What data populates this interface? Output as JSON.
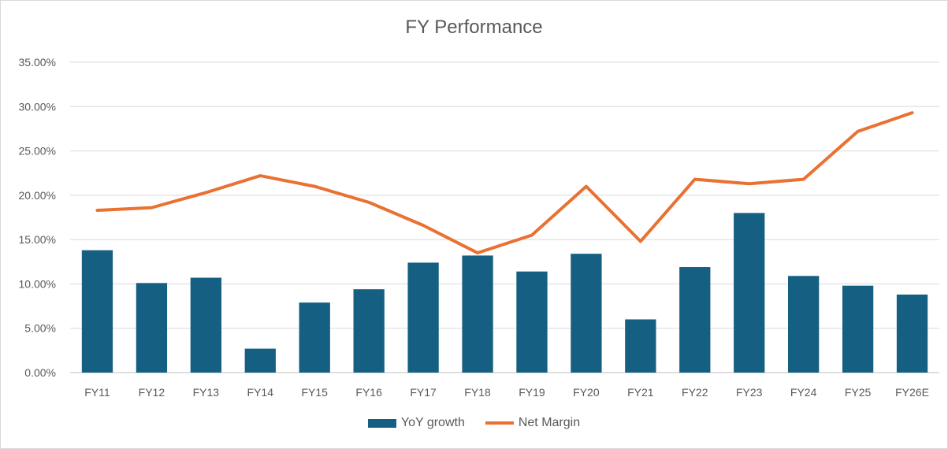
{
  "chart_data": {
    "type": "bar",
    "title": "FY Performance",
    "xlabel": "",
    "ylabel": "",
    "ylim": [
      0,
      35
    ],
    "y_ticks": [
      "0.00%",
      "5.00%",
      "10.00%",
      "15.00%",
      "20.00%",
      "25.00%",
      "30.00%",
      "35.00%"
    ],
    "y_step": 5,
    "categories": [
      "FY11",
      "FY12",
      "FY13",
      "FY14",
      "FY15",
      "FY16",
      "FY17",
      "FY18",
      "FY19",
      "FY20",
      "FY21",
      "FY22",
      "FY23",
      "FY24",
      "FY25",
      "FY26E"
    ],
    "grid": true,
    "legend_position": "bottom",
    "series": [
      {
        "name": "YoY growth",
        "type": "bar",
        "color": "#156082",
        "values": [
          13.8,
          10.1,
          10.7,
          2.7,
          7.9,
          9.4,
          12.4,
          13.2,
          11.4,
          13.4,
          6.0,
          11.9,
          18.0,
          10.9,
          9.8,
          8.8
        ]
      },
      {
        "name": "Net Margin",
        "type": "line",
        "color": "#E97132",
        "values": [
          18.3,
          18.6,
          20.3,
          22.2,
          21.0,
          19.2,
          16.6,
          13.5,
          15.5,
          21.0,
          14.8,
          21.8,
          21.3,
          21.8,
          27.2,
          29.3
        ]
      }
    ]
  }
}
